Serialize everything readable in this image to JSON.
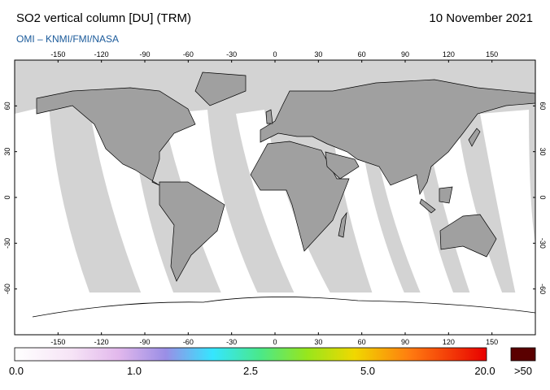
{
  "header": {
    "title": "SO2 vertical column [DU] (TRM)",
    "subtitle": "OMI  –  KNMI/FMI/NASA",
    "date": "10 November 2021"
  },
  "map": {
    "lon_ticks": [
      -150,
      -120,
      -90,
      -60,
      -30,
      0,
      30,
      60,
      90,
      120,
      150
    ],
    "lat_ticks": [
      -60,
      -30,
      0,
      30,
      60
    ]
  },
  "colorbar": {
    "labels": [
      "0.0",
      "1.0",
      "2.5",
      "5.0",
      "20.0",
      ">50"
    ]
  }
}
